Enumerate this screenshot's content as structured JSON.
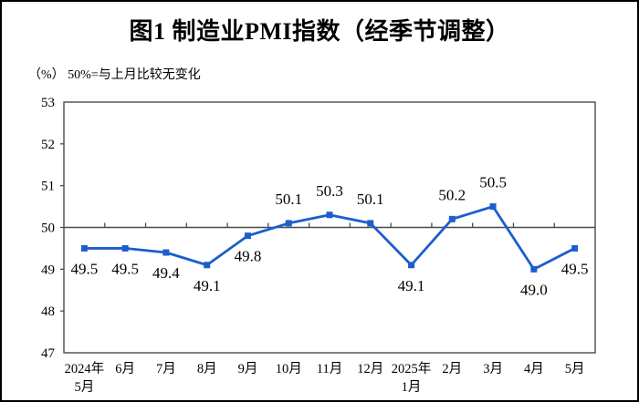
{
  "page": {
    "background_color": "#ffffff",
    "border_color": "#000000"
  },
  "header": {
    "title": "图1 制造业PMI指数（经季节调整）",
    "unit_note": "（%） 50%=与上月比较无变化"
  },
  "chart_data": {
    "type": "line",
    "title": "图1 制造业PMI指数（经季节调整）",
    "subtitle": "（%） 50%=与上月比较无变化",
    "categories": [
      "2024年\n5月",
      "6月",
      "7月",
      "8月",
      "9月",
      "10月",
      "11月",
      "12月",
      "2025年\n1月",
      "2月",
      "3月",
      "4月",
      "5月"
    ],
    "series": [
      {
        "name": "制造业PMI指数",
        "values": [
          49.5,
          49.5,
          49.4,
          49.1,
          49.8,
          50.1,
          50.3,
          50.1,
          49.1,
          50.2,
          50.5,
          49.0,
          49.5
        ]
      }
    ],
    "data_labels": [
      "49.5",
      "49.5",
      "49.4",
      "49.1",
      "49.8",
      "50.1",
      "50.3",
      "50.1",
      "49.1",
      "50.2",
      "50.5",
      "49.0",
      "49.5"
    ],
    "ylim": [
      47,
      53
    ],
    "ytick_step": 1,
    "ytick_labels": [
      "47",
      "48",
      "49",
      "50",
      "51",
      "52",
      "53"
    ],
    "reference_line_value": 50,
    "grid": false,
    "legend_position": "none",
    "marker_shape": "square",
    "line_color": "#1B5ECC",
    "axis_color": "#4a4a4a",
    "label_color": "#000000"
  }
}
